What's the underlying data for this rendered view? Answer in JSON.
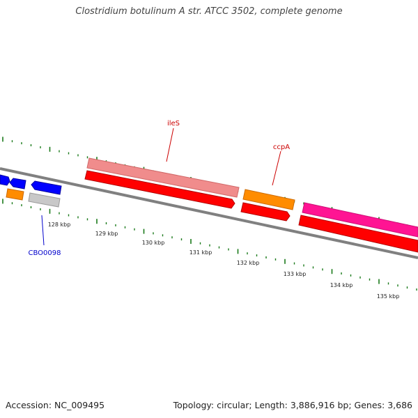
{
  "title": "Clostridium botulinum A str. ATCC 3502, complete genome",
  "footer": {
    "accession": "Accession: NC_009495",
    "summary": "Topology: circular; Length: 3,886,916 bp; Genes: 3,686"
  },
  "colors": {
    "backbone": "#808080",
    "tick": "#1a7a1a",
    "gene_label": "#cc0000",
    "locus_label": "#0000cc",
    "pink_gene": "#f08c8c",
    "red_gene": "#ff0000",
    "orange_gene": "#ff8c00",
    "magenta_gene": "#ff1493",
    "blue_gene": "#0000ff",
    "grey_gene": "#c8c8c8"
  },
  "ruler": {
    "kbp_labels": [
      "128 kbp",
      "129 kbp",
      "130 kbp",
      "131 kbp",
      "132 kbp",
      "133 kbp",
      "134 kbp",
      "135 kbp"
    ]
  },
  "gene_labels": {
    "ileS": "ileS",
    "ccpA": "ccpA",
    "locus": "CBO0098"
  }
}
